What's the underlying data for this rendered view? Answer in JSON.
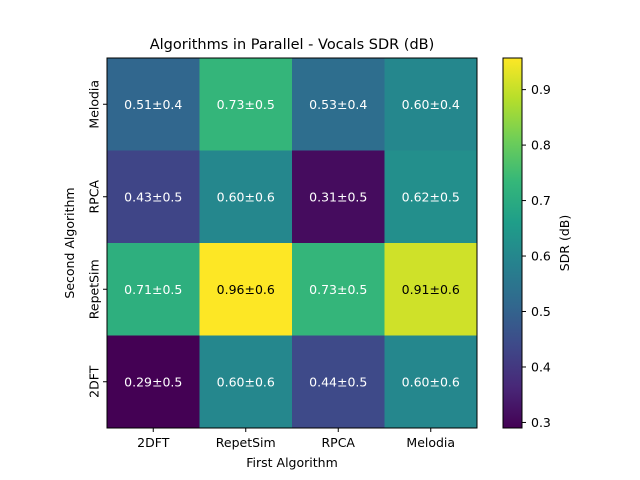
{
  "chart_data": {
    "type": "heatmap",
    "title": "Algorithms in Parallel - Vocals SDR (dB)",
    "xlabel": "First Algorithm",
    "ylabel": "Second Algorithm",
    "x_categories": [
      "2DFT",
      "RepetSim",
      "RPCA",
      "Melodia"
    ],
    "y_categories": [
      "Melodia",
      "RPCA",
      "RepetSim",
      "2DFT"
    ],
    "values": [
      [
        0.51,
        0.73,
        0.53,
        0.6
      ],
      [
        0.43,
        0.6,
        0.31,
        0.62
      ],
      [
        0.71,
        0.96,
        0.73,
        0.91
      ],
      [
        0.29,
        0.6,
        0.44,
        0.6
      ]
    ],
    "cell_labels": [
      [
        "0.51±0.4",
        "0.73±0.5",
        "0.53±0.4",
        "0.60±0.4"
      ],
      [
        "0.43±0.5",
        "0.60±0.6",
        "0.31±0.5",
        "0.62±0.5"
      ],
      [
        "0.71±0.5",
        "0.96±0.6",
        "0.73±0.5",
        "0.91±0.6"
      ],
      [
        "0.29±0.5",
        "0.60±0.6",
        "0.44±0.5",
        "0.60±0.6"
      ]
    ],
    "colorbar": {
      "label": "SDR (dB)",
      "range": [
        0.29,
        0.957
      ],
      "ticks": [
        "0.3",
        "0.4",
        "0.5",
        "0.6",
        "0.7",
        "0.8",
        "0.9"
      ],
      "colormap": "viridis"
    },
    "grid": false
  }
}
